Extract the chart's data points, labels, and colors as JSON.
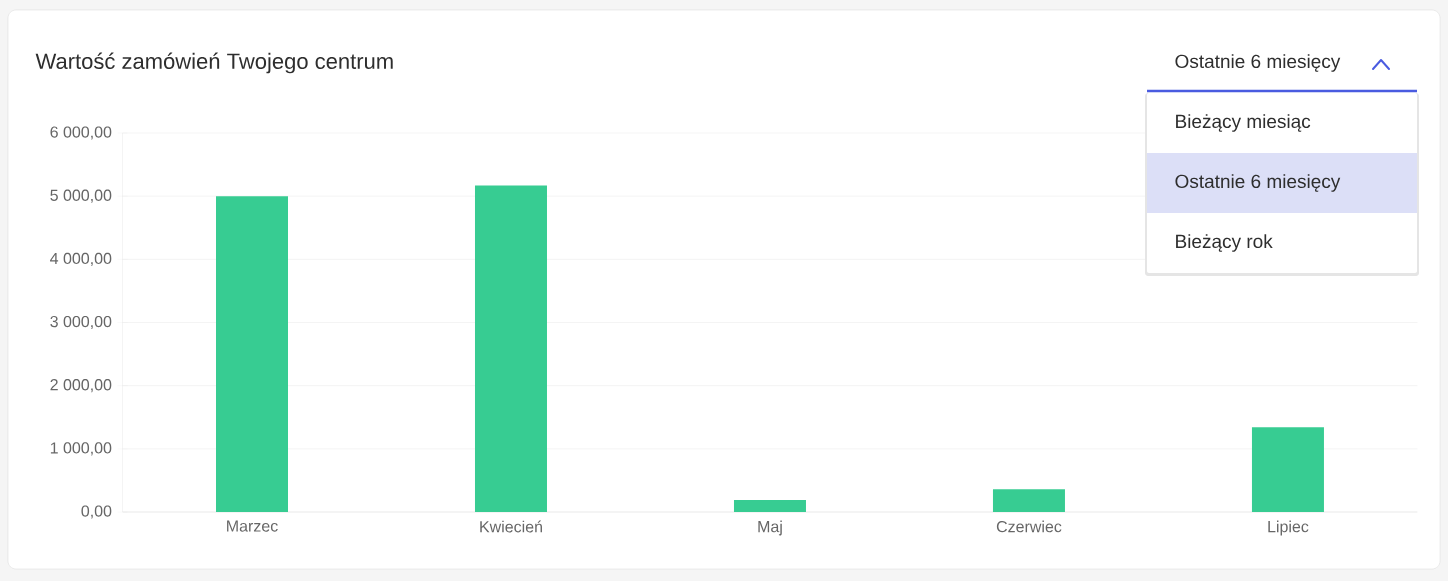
{
  "chart_data": {
    "type": "bar",
    "title": "Wartość zamówień Twojego centrum",
    "categories": [
      "Marzec",
      "Kwiecień",
      "Maj",
      "Czerwiec",
      "Lipiec"
    ],
    "values": [
      5000,
      5170,
      190,
      360,
      1340
    ],
    "color": "#37cc92",
    "ylim": [
      0,
      6000
    ],
    "yticks": [
      {
        "value": 0,
        "label": "0,00"
      },
      {
        "value": 1000,
        "label": "1 000,00"
      },
      {
        "value": 2000,
        "label": "2 000,00"
      },
      {
        "value": 3000,
        "label": "3 000,00"
      },
      {
        "value": 4000,
        "label": "4 000,00"
      },
      {
        "value": 5000,
        "label": "5 000,00"
      },
      {
        "value": 6000,
        "label": "6 000,00"
      }
    ],
    "grid": "y",
    "annotations": [
      "Ostatnie 6 miesięcy",
      "Bieżący miesiąc",
      "Ostatnie 6 miesięcy",
      "Bieżący rok"
    ]
  }
}
